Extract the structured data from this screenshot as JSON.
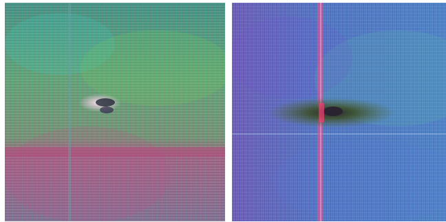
{
  "image": {
    "panels": [
      {
        "id": "left",
        "description_colors": {
          "base_top": "#4f9a7a",
          "base_bottom": "#8a6f86",
          "band": "#b04c7a",
          "center_glow": "#f6e8f2",
          "center_dark": "#2a2f3d",
          "vertical_line": "#6aa0a3"
        }
      },
      {
        "id": "right",
        "description_colors": {
          "base": "#4c6cbb",
          "left_tint": "#6f4fb9",
          "red_stripe": "#ff4a86",
          "dark_blob": "#556a25",
          "center_dark": "#2a2230",
          "green_tint": "#56c2a6"
        }
      }
    ]
  }
}
